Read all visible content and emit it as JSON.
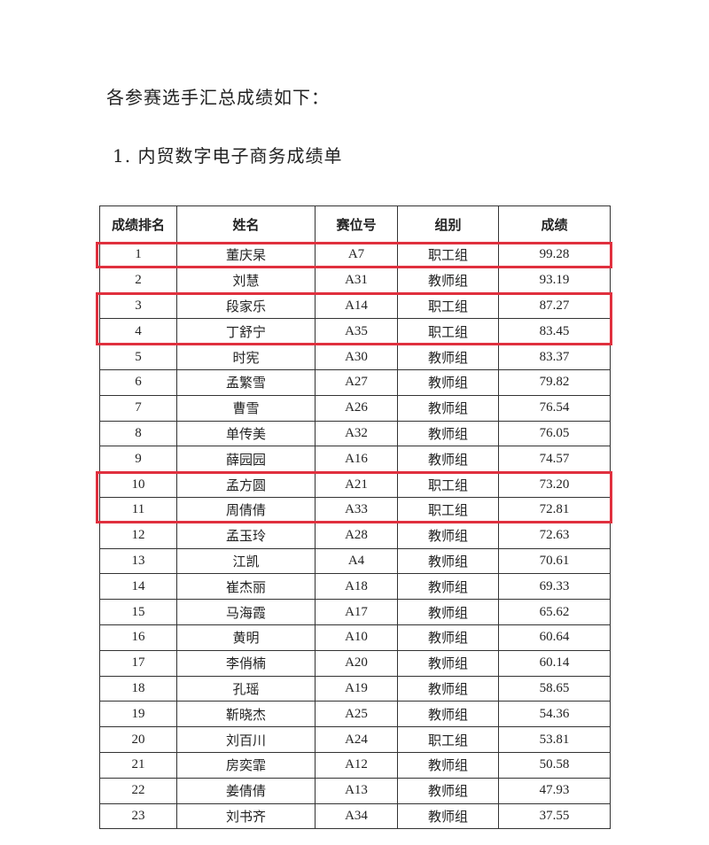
{
  "intro": "各参赛选手汇总成绩如下：",
  "subtitle": "1. 内贸数字电子商务成绩单",
  "highlight_color": "#e0303e",
  "table": {
    "headers": [
      "成绩排名",
      "姓名",
      "赛位号",
      "组别",
      "成绩"
    ],
    "rows": [
      [
        "1",
        "董庆杲",
        "A7",
        "职工组",
        "99.28"
      ],
      [
        "2",
        "刘慧",
        "A31",
        "教师组",
        "93.19"
      ],
      [
        "3",
        "段家乐",
        "A14",
        "职工组",
        "87.27"
      ],
      [
        "4",
        "丁舒宁",
        "A35",
        "职工组",
        "83.45"
      ],
      [
        "5",
        "时宪",
        "A30",
        "教师组",
        "83.37"
      ],
      [
        "6",
        "孟繁雪",
        "A27",
        "教师组",
        "79.82"
      ],
      [
        "7",
        "曹雪",
        "A26",
        "教师组",
        "76.54"
      ],
      [
        "8",
        "单传美",
        "A32",
        "教师组",
        "76.05"
      ],
      [
        "9",
        "薛园园",
        "A16",
        "教师组",
        "74.57"
      ],
      [
        "10",
        "孟方圆",
        "A21",
        "职工组",
        "73.20"
      ],
      [
        "11",
        "周倩倩",
        "A33",
        "职工组",
        "72.81"
      ],
      [
        "12",
        "孟玉玲",
        "A28",
        "教师组",
        "72.63"
      ],
      [
        "13",
        "江凯",
        "A4",
        "教师组",
        "70.61"
      ],
      [
        "14",
        "崔杰丽",
        "A18",
        "教师组",
        "69.33"
      ],
      [
        "15",
        "马海霞",
        "A17",
        "教师组",
        "65.62"
      ],
      [
        "16",
        "黄明",
        "A10",
        "教师组",
        "60.64"
      ],
      [
        "17",
        "李俏楠",
        "A20",
        "教师组",
        "60.14"
      ],
      [
        "18",
        "孔瑶",
        "A19",
        "教师组",
        "58.65"
      ],
      [
        "19",
        "靳晓杰",
        "A25",
        "教师组",
        "54.36"
      ],
      [
        "20",
        "刘百川",
        "A24",
        "职工组",
        "53.81"
      ],
      [
        "21",
        "房奕霏",
        "A12",
        "教师组",
        "50.58"
      ],
      [
        "22",
        "姜倩倩",
        "A13",
        "教师组",
        "47.93"
      ],
      [
        "23",
        "刘书齐",
        "A34",
        "教师组",
        "37.55"
      ]
    ],
    "highlighted_ranks": [
      [
        1,
        1
      ],
      [
        3,
        4
      ],
      [
        10,
        11
      ]
    ]
  }
}
